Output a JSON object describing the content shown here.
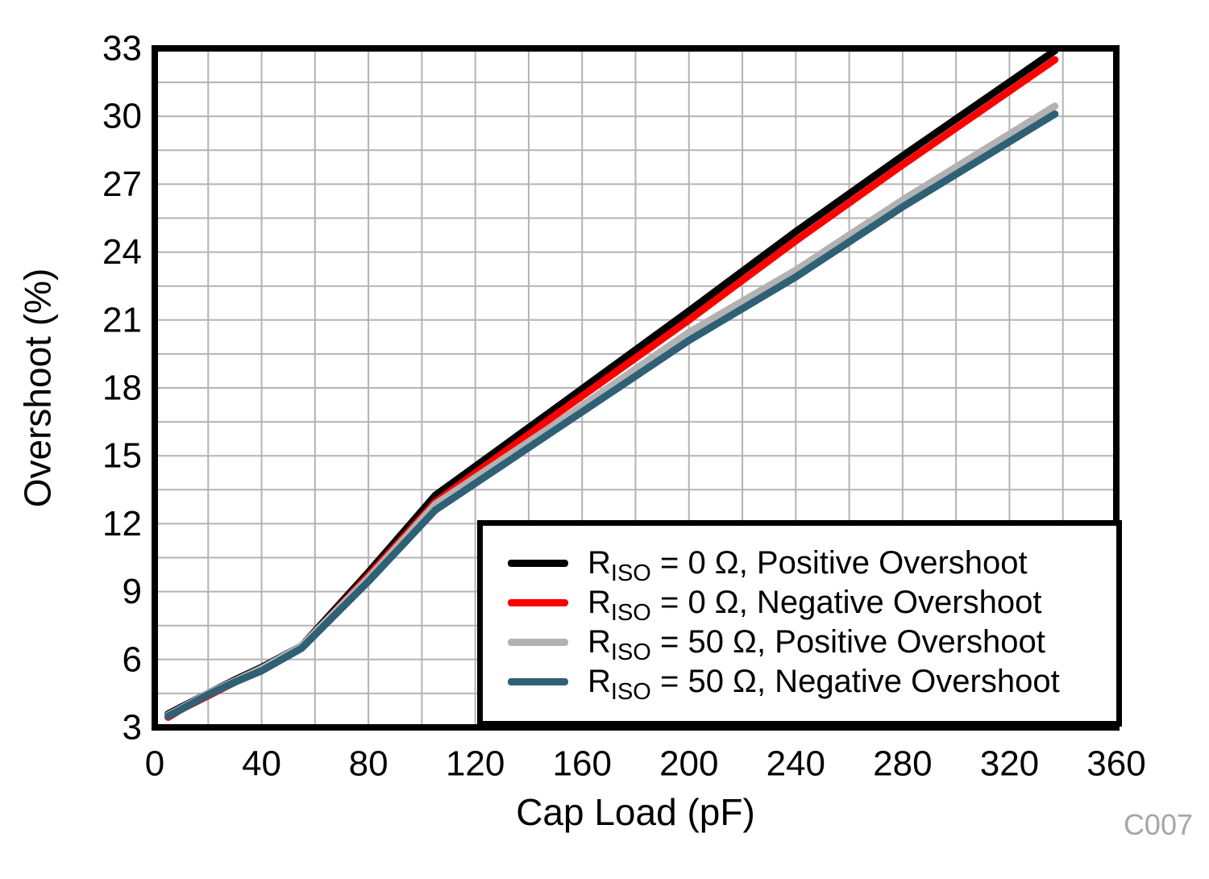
{
  "chart_data": {
    "type": "line",
    "title": "",
    "xlabel": "Cap Load (pF)",
    "ylabel": "Overshoot (%)",
    "code_label": "C007",
    "xlim": [
      0,
      360
    ],
    "ylim": [
      3,
      33
    ],
    "x_major_ticks": [
      0,
      40,
      80,
      120,
      160,
      200,
      240,
      280,
      320,
      360
    ],
    "y_major_ticks": [
      3,
      6,
      9,
      12,
      15,
      18,
      21,
      24,
      27,
      30,
      33
    ],
    "x_minor_step": 20,
    "y_minor_step": 1.5,
    "grid": true,
    "grid_color": "#b3b3b3",
    "frame_color": "#000000",
    "legend_position": "inside-bottom-right",
    "x": [
      5,
      10,
      20,
      30,
      40,
      55,
      80,
      105,
      150,
      200,
      240,
      280,
      337
    ],
    "series": [
      {
        "key": "riso-0-positive",
        "label_r": "R",
        "label_sub": "ISO",
        "label_rest": " = 0 Ω, Positive Overshoot",
        "color": "#000000",
        "values": [
          3.6,
          3.9,
          4.5,
          5.1,
          5.65,
          6.6,
          9.85,
          13.25,
          17.1,
          21.4,
          24.9,
          28.25,
          32.9
        ]
      },
      {
        "key": "riso-0-negative",
        "label_r": "R",
        "label_sub": "ISO",
        "label_rest": " = 0 Ω, Negative Overshoot",
        "color": "#ff0000",
        "values": [
          3.45,
          3.8,
          4.4,
          5.0,
          5.55,
          6.55,
          9.7,
          12.95,
          16.8,
          21.0,
          24.5,
          27.85,
          32.5
        ]
      },
      {
        "key": "riso-50-positive",
        "label_r": "R",
        "label_sub": "ISO",
        "label_rest": " = 50 Ω, Positive Overshoot",
        "color": "#b2b2b2",
        "values": [
          3.55,
          3.85,
          4.5,
          5.05,
          5.6,
          6.6,
          9.6,
          12.85,
          16.4,
          20.45,
          23.2,
          26.3,
          30.45
        ]
      },
      {
        "key": "riso-50-negative",
        "label_r": "R",
        "label_sub": "ISO",
        "label_rest": " = 50 Ω, Negative Overshoot",
        "color": "#2e6076",
        "values": [
          3.5,
          3.8,
          4.45,
          5.0,
          5.5,
          6.5,
          9.45,
          12.6,
          16.15,
          20.1,
          22.9,
          26.0,
          30.1
        ]
      }
    ]
  }
}
